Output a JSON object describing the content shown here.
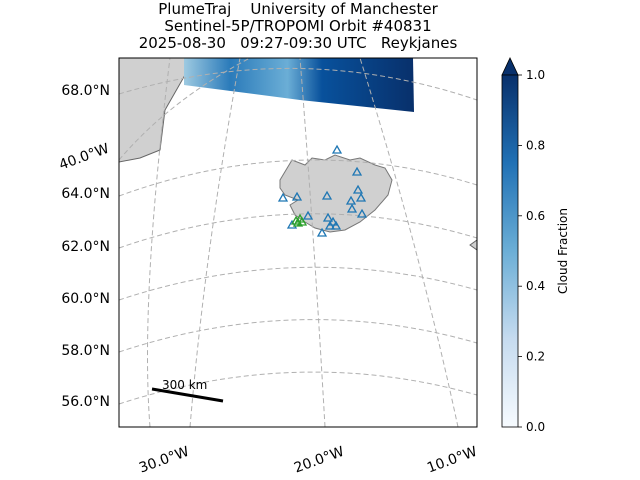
{
  "title": [
    "PlumeTraj    University of Manchester",
    "Sentinel-5P/TROPOMI Orbit #40831",
    "2025-08-30   09:27-09:30 UTC   Reykjanes"
  ],
  "map": {
    "lat_labels": [
      "68.0°N",
      "64.0°N",
      "62.0°N",
      "60.0°N",
      "58.0°N",
      "56.0°N"
    ],
    "lon_labels": [
      "40.0°W",
      "30.0°W",
      "20.0°W",
      "10.0°W"
    ],
    "scale_bar": "300 km"
  },
  "colorbar": {
    "label": "Cloud Fraction",
    "lim": [
      0,
      1
    ],
    "ticks": [
      {
        "value": 0,
        "label": "0.0"
      },
      {
        "value": 0.2,
        "label": "0.2"
      },
      {
        "value": 0.4,
        "label": "0.4"
      },
      {
        "value": 0.6,
        "label": "0.6"
      },
      {
        "value": 0.8,
        "label": "0.8"
      },
      {
        "value": 1,
        "label": "1.0"
      }
    ]
  }
}
